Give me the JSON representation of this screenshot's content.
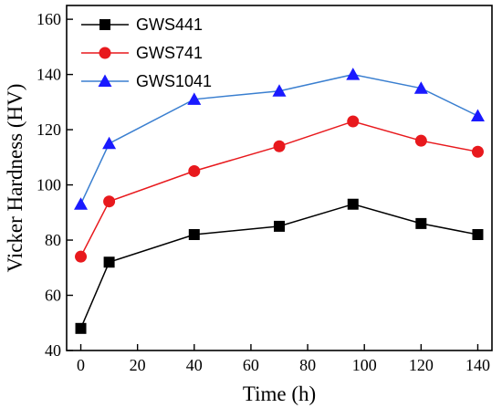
{
  "chart_data": {
    "type": "line",
    "title": "",
    "xlabel": "Time (h)",
    "ylabel": "Vicker Hardness (HV)",
    "xlim": [
      -5,
      145
    ],
    "ylim": [
      40,
      165
    ],
    "xticks": [
      0,
      20,
      40,
      60,
      80,
      100,
      120,
      140
    ],
    "yticks": [
      40,
      60,
      80,
      100,
      120,
      140,
      160
    ],
    "grid": false,
    "legend_position": "top-left",
    "series": [
      {
        "name": "GWS441",
        "color": "#000000",
        "marker": "square",
        "x": [
          0,
          10,
          40,
          70,
          96,
          120,
          140
        ],
        "y": [
          48,
          72,
          82,
          85,
          93,
          86,
          82
        ]
      },
      {
        "name": "GWS741",
        "color": "#e8191d",
        "marker": "circle",
        "x": [
          0,
          10,
          40,
          70,
          96,
          120,
          140
        ],
        "y": [
          74,
          94,
          105,
          114,
          123,
          116,
          112
        ]
      },
      {
        "name": "GWS1041",
        "color": "#3a7fd0",
        "markerColor": "#1a1aff",
        "marker": "triangle",
        "x": [
          0,
          10,
          40,
          70,
          96,
          120,
          140
        ],
        "y": [
          93,
          115,
          131,
          134,
          140,
          135,
          125
        ]
      }
    ]
  }
}
